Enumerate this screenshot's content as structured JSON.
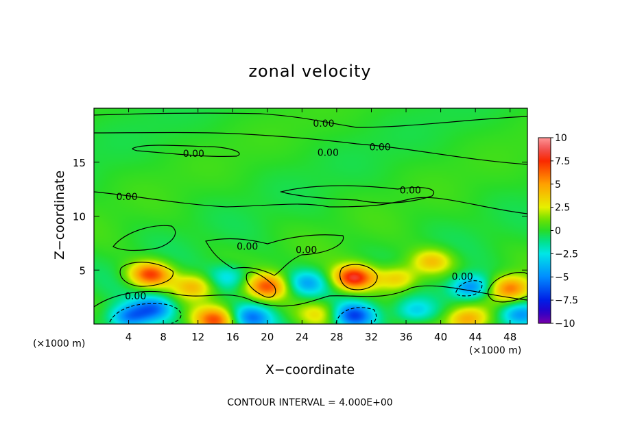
{
  "chart_data": {
    "type": "heatmap",
    "title": "zonal velocity",
    "xlabel": "X−coordinate",
    "ylabel": "Z−coordinate",
    "x_unit": "(×1000 m)",
    "z_unit": "(×1000 m)",
    "xlim": [
      0,
      50
    ],
    "zlim": [
      0,
      20
    ],
    "x_ticks": [
      4,
      8,
      12,
      16,
      20,
      24,
      28,
      32,
      36,
      40,
      44,
      48
    ],
    "x_tick_labels": [
      "4",
      "8",
      "12",
      "16",
      "20",
      "24",
      "28",
      "32",
      "36",
      "40",
      "44",
      "48"
    ],
    "z_ticks": [
      5,
      10,
      15
    ],
    "z_tick_labels": [
      "5",
      "10",
      "15"
    ],
    "colorbar": {
      "min": -10,
      "max": 10,
      "ticks": [
        10,
        7.5,
        5,
        2.5,
        0,
        -2.5,
        -5,
        -7.5,
        -10
      ],
      "tick_labels": [
        "10",
        "7.5",
        "5",
        "2.5",
        "0",
        "−2.5",
        "−5",
        "−7.5",
        "−10"
      ]
    },
    "contour_interval_text": "CONTOUR INTERVAL = 4.000E+00",
    "contour_labels": [
      {
        "text": "0.00",
        "x": 26.5,
        "z": 18.6
      },
      {
        "text": "0.00",
        "x": 11.5,
        "z": 15.8
      },
      {
        "text": "0.00",
        "x": 27.0,
        "z": 15.9
      },
      {
        "text": "0.00",
        "x": 33.0,
        "z": 16.4
      },
      {
        "text": "0.00",
        "x": 36.5,
        "z": 12.4
      },
      {
        "text": "0.00",
        "x": 3.8,
        "z": 11.8
      },
      {
        "text": "0.00",
        "x": 17.7,
        "z": 7.2
      },
      {
        "text": "0.00",
        "x": 24.5,
        "z": 6.9
      },
      {
        "text": "0.00",
        "x": 42.5,
        "z": 4.4
      },
      {
        "text": "0.00",
        "x": 4.8,
        "z": 2.6
      }
    ],
    "features": [
      {
        "x": 6.5,
        "z": 4.6,
        "value": 7.0
      },
      {
        "x": 20.0,
        "z": 3.5,
        "value": 6.0
      },
      {
        "x": 30.0,
        "z": 4.3,
        "value": 8.0
      },
      {
        "x": 48.0,
        "z": 3.3,
        "value": 6.0
      },
      {
        "x": 14.0,
        "z": 0.4,
        "value": 6.0
      },
      {
        "x": 43.0,
        "z": 0.4,
        "value": 5.0
      },
      {
        "x": 7.0,
        "z": 1.5,
        "value": -5.0
      },
      {
        "x": 4.0,
        "z": 0.6,
        "value": -5.5
      },
      {
        "x": 18.0,
        "z": 0.6,
        "value": -5.0
      },
      {
        "x": 30.0,
        "z": 0.8,
        "value": -6.0
      },
      {
        "x": 43.5,
        "z": 3.4,
        "value": -5.5
      },
      {
        "x": 49.0,
        "z": 0.8,
        "value": -5.0
      },
      {
        "x": 24.5,
        "z": 3.8,
        "value": -4.0
      },
      {
        "x": 35.0,
        "z": 4.2,
        "value": 4.0
      },
      {
        "x": 37.0,
        "z": 1.2,
        "value": -3.5
      },
      {
        "x": 11.5,
        "z": 3.5,
        "value": 4.0
      },
      {
        "x": 15.5,
        "z": 4.3,
        "value": -3.0
      },
      {
        "x": 39.0,
        "z": 5.8,
        "value": 4.0
      },
      {
        "x": 26.0,
        "z": 1.0,
        "value": 3.0
      }
    ]
  }
}
